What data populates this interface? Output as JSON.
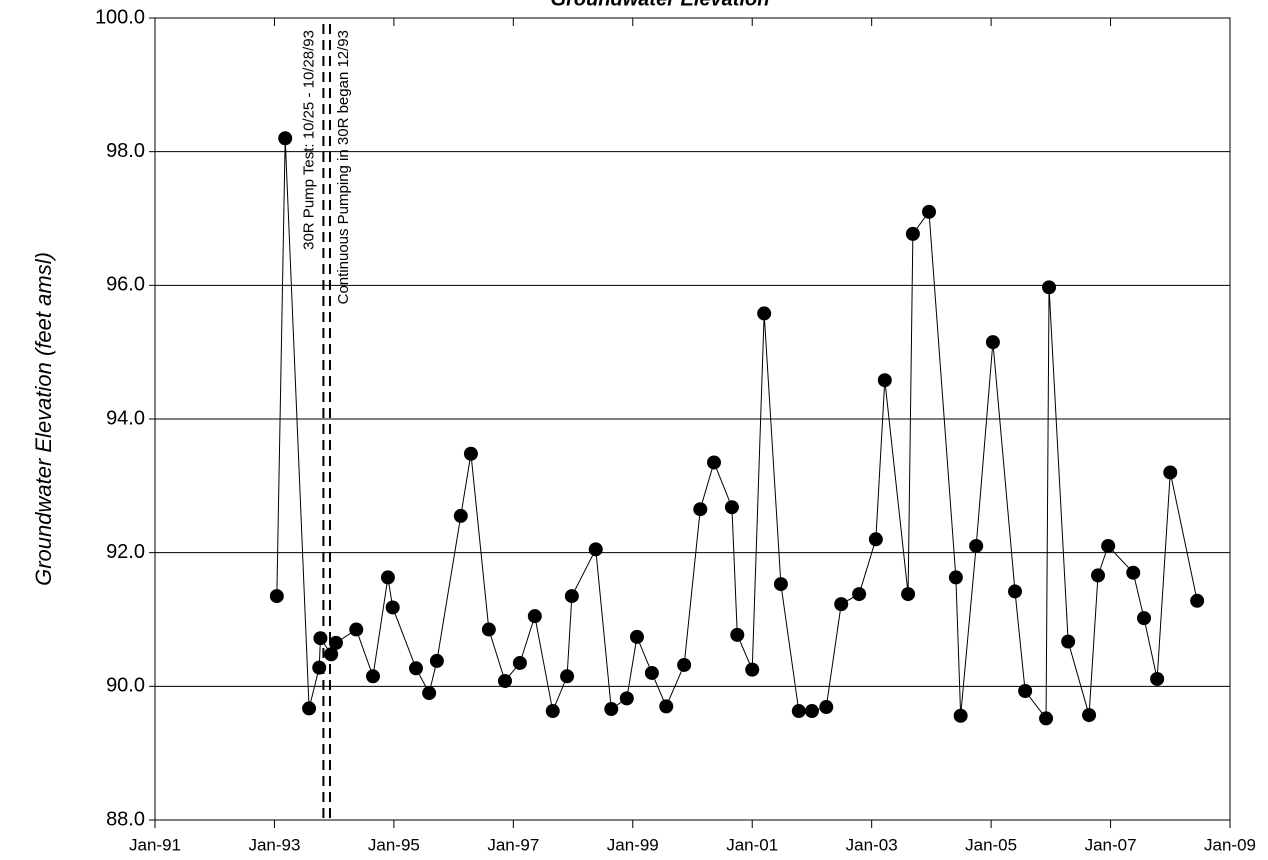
{
  "chart_data": {
    "type": "line",
    "title": "Groundwater Elevation",
    "y_label": "Groundwater Elevation (feet amsl)",
    "x": [
      1993.04,
      1993.18,
      1993.58,
      1993.75,
      1993.77,
      1993.95,
      1994.03,
      1994.37,
      1994.65,
      1994.9,
      1994.98,
      1995.37,
      1995.59,
      1995.72,
      1996.12,
      1996.29,
      1996.59,
      1996.86,
      1997.11,
      1997.36,
      1997.66,
      1997.9,
      1997.98,
      1998.38,
      1998.64,
      1998.9,
      1999.07,
      1999.32,
      1999.56,
      1999.86,
      2000.13,
      2000.36,
      2000.66,
      2000.75,
      2001.0,
      2001.2,
      2001.48,
      2001.78,
      2002.0,
      2002.24,
      2002.49,
      2002.79,
      2003.07,
      2003.22,
      2003.61,
      2003.69,
      2003.96,
      2004.41,
      2004.49,
      2004.75,
      2005.03,
      2005.4,
      2005.57,
      2005.92,
      2005.97,
      2006.29,
      2006.64,
      2006.79,
      2006.96,
      2007.38,
      2007.56,
      2007.78,
      2008.0,
      2008.45
    ],
    "series": [
      {
        "color": "#000000",
        "values": [
          91.35,
          98.2,
          89.67,
          90.28,
          90.72,
          90.48,
          90.65,
          90.85,
          90.15,
          91.63,
          91.18,
          90.27,
          89.9,
          90.38,
          92.55,
          93.48,
          90.85,
          90.08,
          90.35,
          91.05,
          89.63,
          90.15,
          91.35,
          92.05,
          89.66,
          89.82,
          90.74,
          90.2,
          89.7,
          90.32,
          92.65,
          93.35,
          92.68,
          90.77,
          90.25,
          95.58,
          91.53,
          89.63,
          89.63,
          89.69,
          91.23,
          91.38,
          92.2,
          94.58,
          91.38,
          96.77,
          97.1,
          91.63,
          89.56,
          92.1,
          95.15,
          91.42,
          89.93,
          89.52,
          95.97,
          90.67,
          89.57,
          91.66,
          92.1,
          91.7,
          91.02,
          90.11,
          93.2,
          91.28
        ]
      }
    ],
    "xlim": [
      1991,
      2009
    ],
    "ylim": [
      88,
      100
    ],
    "xticks": [
      {
        "value": 1991,
        "label": "Jan-91"
      },
      {
        "value": 1993,
        "label": "Jan-93"
      },
      {
        "value": 1995,
        "label": "Jan-95"
      },
      {
        "value": 1997,
        "label": "Jan-97"
      },
      {
        "value": 1999,
        "label": "Jan-99"
      },
      {
        "value": 2001,
        "label": "Jan-01"
      },
      {
        "value": 2003,
        "label": "Jan-03"
      },
      {
        "value": 2005,
        "label": "Jan-05"
      },
      {
        "value": 2007,
        "label": "Jan-07"
      },
      {
        "value": 2009,
        "label": "Jan-09"
      }
    ],
    "yticks": [
      {
        "value": 88,
        "label": "88.0"
      },
      {
        "value": 90,
        "label": "90.0"
      },
      {
        "value": 92,
        "label": "92.0"
      },
      {
        "value": 94,
        "label": "94.0"
      },
      {
        "value": 96,
        "label": "96.0"
      },
      {
        "value": 98,
        "label": "98.0"
      },
      {
        "value": 100,
        "label": "100.0"
      }
    ],
    "grid": true,
    "annotations": [
      {
        "x": 1993.82,
        "text": "30R Pump Test: 10/25 - 10/28/93"
      },
      {
        "x": 1993.93,
        "text": "Continuous Pumping in 30R began 12/93"
      }
    ]
  }
}
